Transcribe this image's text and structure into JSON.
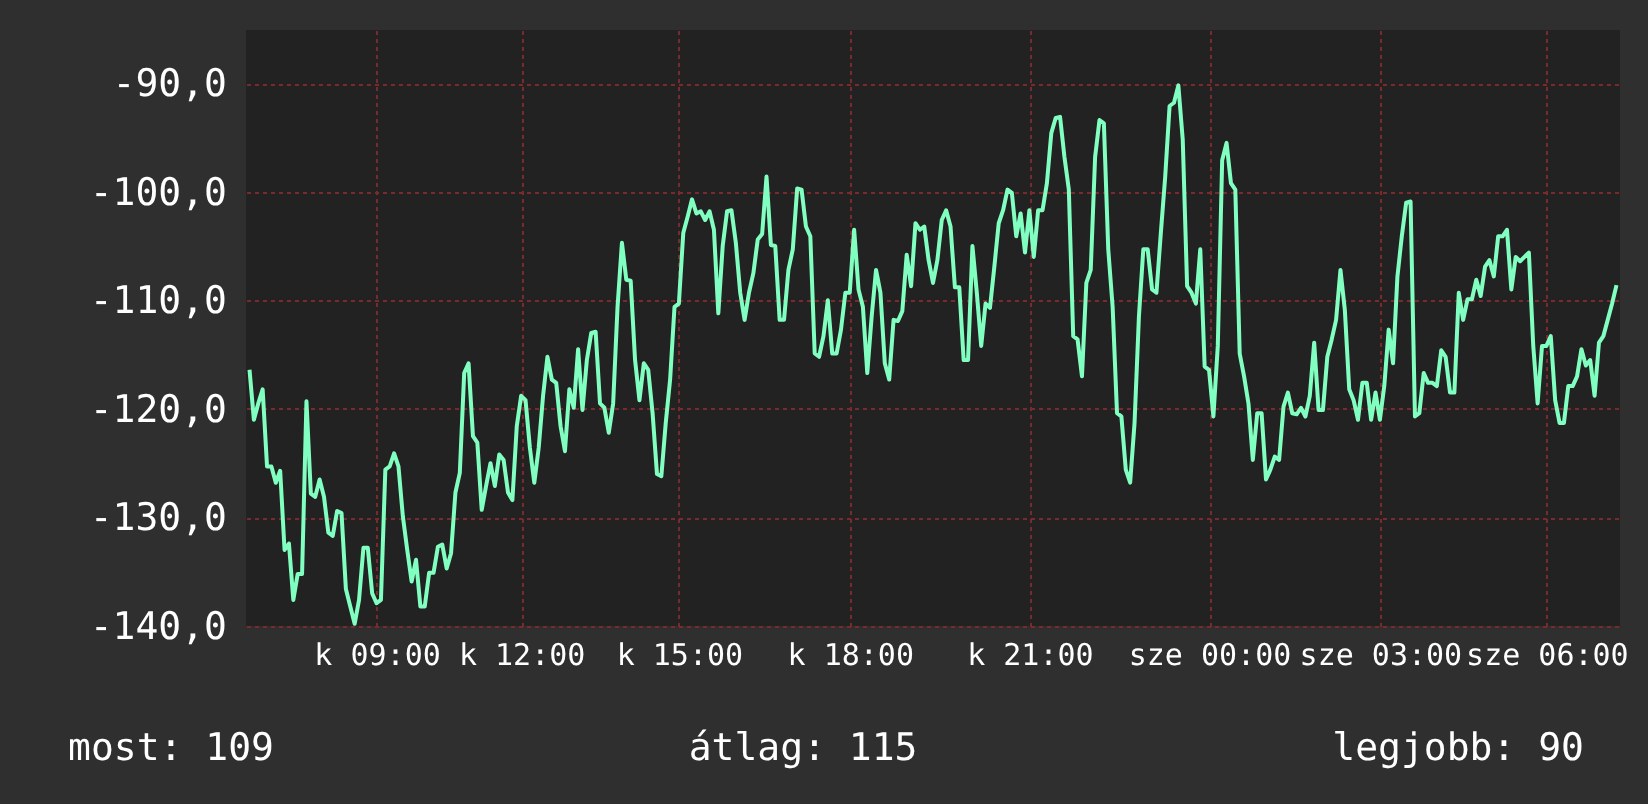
{
  "chart_data": {
    "type": "line",
    "ylim": [
      -140,
      -85.1
    ],
    "categories": [
      null,
      null,
      null,
      null,
      null,
      null,
      null,
      null,
      null,
      null,
      null,
      null,
      null,
      null,
      null,
      null,
      null,
      null,
      null,
      null,
      null,
      null,
      null,
      null,
      null,
      null,
      null,
      null,
      null,
      "k 09:00",
      null,
      null,
      null,
      null,
      null,
      null,
      null,
      null,
      null,
      null,
      null,
      null,
      null,
      null,
      null,
      null,
      null,
      null,
      null,
      null,
      null,
      null,
      null,
      null,
      null,
      null,
      null,
      null,
      null,
      null,
      null,
      null,
      "k 12:00",
      null,
      null,
      null,
      null,
      null,
      null,
      null,
      null,
      null,
      null,
      null,
      null,
      null,
      null,
      null,
      null,
      null,
      null,
      null,
      null,
      null,
      null,
      null,
      null,
      null,
      null,
      null,
      null,
      null,
      null,
      null,
      null,
      null,
      null,
      null,
      "k 15:00",
      null,
      null,
      null,
      null,
      null,
      null,
      null,
      null,
      null,
      null,
      null,
      null,
      null,
      null,
      null,
      null,
      null,
      null,
      null,
      null,
      null,
      null,
      null,
      null,
      null,
      null,
      null,
      null,
      null,
      null,
      null,
      null,
      null,
      null,
      null,
      null,
      null,
      null,
      "k 18:00",
      null,
      null,
      null,
      null,
      null,
      null,
      null,
      null,
      null,
      null,
      null,
      null,
      null,
      null,
      null,
      null,
      null,
      null,
      null,
      null,
      null,
      null,
      null,
      null,
      null,
      null,
      null,
      null,
      null,
      null,
      null,
      null,
      null,
      null,
      null,
      null,
      null,
      null,
      null,
      null,
      "k 21:00",
      null,
      null,
      null,
      null,
      null,
      null,
      null,
      null,
      null,
      null,
      null,
      null,
      null,
      null,
      null,
      null,
      null,
      null,
      null,
      null,
      null,
      null,
      null,
      null,
      null,
      null,
      null,
      null,
      null,
      null,
      null,
      null,
      null,
      null,
      null,
      null,
      null,
      null,
      null,
      null,
      "sze 00:00",
      null,
      null,
      null,
      null,
      null,
      null,
      null,
      null,
      null,
      null,
      null,
      null,
      null,
      null,
      null,
      null,
      null,
      null,
      null,
      null,
      null,
      null,
      null,
      null,
      null,
      null,
      null,
      null,
      null,
      null,
      null,
      null,
      null,
      null,
      null,
      null,
      null,
      null,
      "sze 03:00",
      null,
      null,
      null,
      null,
      null,
      null,
      null,
      null,
      null,
      null,
      null,
      null,
      null,
      null,
      null,
      null,
      null,
      null,
      null,
      null,
      null,
      null,
      null,
      null,
      null,
      null,
      null,
      null,
      null,
      null,
      null,
      null,
      null,
      null,
      null,
      null,
      null,
      "sze 06:00",
      null,
      null,
      null,
      null,
      null,
      null,
      null,
      null,
      null,
      null,
      null,
      null,
      null,
      null,
      null,
      null
    ],
    "yticks": [
      {
        "value": -140,
        "label": "-140,0"
      },
      {
        "value": -130,
        "label": "-130,0"
      },
      {
        "value": -120,
        "label": "-120,0"
      },
      {
        "value": -110,
        "label": "-110,0"
      },
      {
        "value": -100,
        "label": "-100,0"
      },
      {
        "value": -90,
        "label": "-90,0"
      }
    ],
    "grid": true,
    "marker": "none",
    "line_style": "solid",
    "annotations": [
      "most: 109",
      "átlag: 115",
      "legjobb: 90"
    ],
    "series": [
      {
        "color": "#80ffc0",
        "values": [
          -116.4,
          -121.0,
          -119.5,
          -118.2,
          -125.3,
          -125.3,
          -126.8,
          -125.7,
          -133.0,
          -132.4,
          -137.6,
          -135.2,
          -135.2,
          -119.3,
          -127.8,
          -128.1,
          -126.5,
          -128.1,
          -131.4,
          -131.7,
          -129.4,
          -129.6,
          -136.6,
          -138.2,
          -139.8,
          -137.6,
          -132.8,
          -132.8,
          -137.0,
          -137.9,
          -137.6,
          -125.6,
          -125.3,
          -124.1,
          -125.3,
          -129.9,
          -133.0,
          -135.9,
          -133.9,
          -138.2,
          -138.2,
          -135.1,
          -135.1,
          -132.7,
          -132.5,
          -134.7,
          -133.3,
          -127.7,
          -125.9,
          -116.7,
          -115.8,
          -122.5,
          -123.1,
          -129.3,
          -127.1,
          -125.0,
          -127.1,
          -124.2,
          -124.7,
          -127.7,
          -128.4,
          -121.6,
          -118.8,
          -119.2,
          -123.6,
          -126.8,
          -123.6,
          -118.8,
          -115.2,
          -117.3,
          -117.6,
          -121.6,
          -123.9,
          -118.2,
          -119.9,
          -114.5,
          -120.1,
          -115.5,
          -113.0,
          -112.9,
          -119.5,
          -119.9,
          -122.2,
          -119.5,
          -110.6,
          -104.7,
          -108.1,
          -108.2,
          -115.5,
          -119.2,
          -115.8,
          -116.4,
          -120.4,
          -126.0,
          -126.2,
          -121.3,
          -117.3,
          -110.6,
          -110.3,
          -103.8,
          -102.3,
          -100.7,
          -102.0,
          -101.8,
          -102.6,
          -101.8,
          -103.5,
          -111.2,
          -105.0,
          -101.8,
          -101.7,
          -104.7,
          -109.3,
          -111.8,
          -109.3,
          -107.5,
          -104.4,
          -103.9,
          -98.6,
          -104.9,
          -105.0,
          -111.8,
          -111.8,
          -107.2,
          -105.3,
          -99.7,
          -99.8,
          -103.2,
          -104.1,
          -114.9,
          -115.2,
          -113.3,
          -110.0,
          -114.9,
          -114.9,
          -112.7,
          -109.3,
          -109.3,
          -103.5,
          -109.0,
          -110.6,
          -116.7,
          -111.5,
          -107.2,
          -109.3,
          -115.8,
          -117.3,
          -111.8,
          -111.9,
          -111.0,
          -105.8,
          -108.7,
          -102.9,
          -103.5,
          -103.2,
          -106.3,
          -108.4,
          -106.3,
          -102.6,
          -101.7,
          -103.2,
          -108.8,
          -108.8,
          -115.5,
          -115.5,
          -105.0,
          -109.3,
          -114.2,
          -110.3,
          -110.7,
          -106.9,
          -102.9,
          -101.7,
          -99.8,
          -100.1,
          -104.1,
          -102.0,
          -105.6,
          -101.7,
          -106.0,
          -101.7,
          -101.7,
          -99.2,
          -94.6,
          -93.2,
          -93.1,
          -96.8,
          -99.8,
          -113.3,
          -113.6,
          -117.0,
          -108.4,
          -107.2,
          -96.8,
          -93.4,
          -93.7,
          -105.3,
          -110.6,
          -120.4,
          -120.7,
          -125.6,
          -126.8,
          -121.3,
          -111.5,
          -105.3,
          -105.3,
          -109.0,
          -109.3,
          -103.8,
          -98.6,
          -92.1,
          -91.8,
          -90.2,
          -95.2,
          -108.7,
          -109.3,
          -110.3,
          -105.3,
          -116.1,
          -116.4,
          -120.7,
          -114.2,
          -97.1,
          -95.5,
          -99.2,
          -99.8,
          -114.9,
          -117.0,
          -119.5,
          -124.7,
          -120.4,
          -120.4,
          -126.5,
          -125.6,
          -124.4,
          -124.7,
          -119.8,
          -118.5,
          -120.4,
          -120.5,
          -119.9,
          -120.7,
          -118.8,
          -113.9,
          -120.1,
          -120.1,
          -115.2,
          -113.6,
          -111.8,
          -107.2,
          -110.9,
          -118.2,
          -119.2,
          -121.0,
          -117.6,
          -117.6,
          -121.0,
          -118.5,
          -121.0,
          -117.9,
          -112.7,
          -115.8,
          -107.8,
          -104.1,
          -101.0,
          -100.9,
          -120.7,
          -120.4,
          -116.7,
          -117.6,
          -117.6,
          -117.9,
          -114.6,
          -115.2,
          -118.5,
          -118.5,
          -109.3,
          -111.8,
          -109.9,
          -109.9,
          -108.1,
          -109.6,
          -106.9,
          -106.3,
          -107.8,
          -104.1,
          -104.1,
          -103.5,
          -109.0,
          -106.0,
          -106.4,
          -106.0,
          -105.6,
          -114.2,
          -119.5,
          -114.2,
          -114.2,
          -113.3,
          -119.2,
          -121.3,
          -121.3,
          -117.9,
          -117.9,
          -117.0,
          -114.5,
          -116.0,
          -115.5,
          -118.8,
          -113.9,
          -113.3,
          -111.8,
          -110.3,
          -108.6
        ]
      }
    ]
  }
}
